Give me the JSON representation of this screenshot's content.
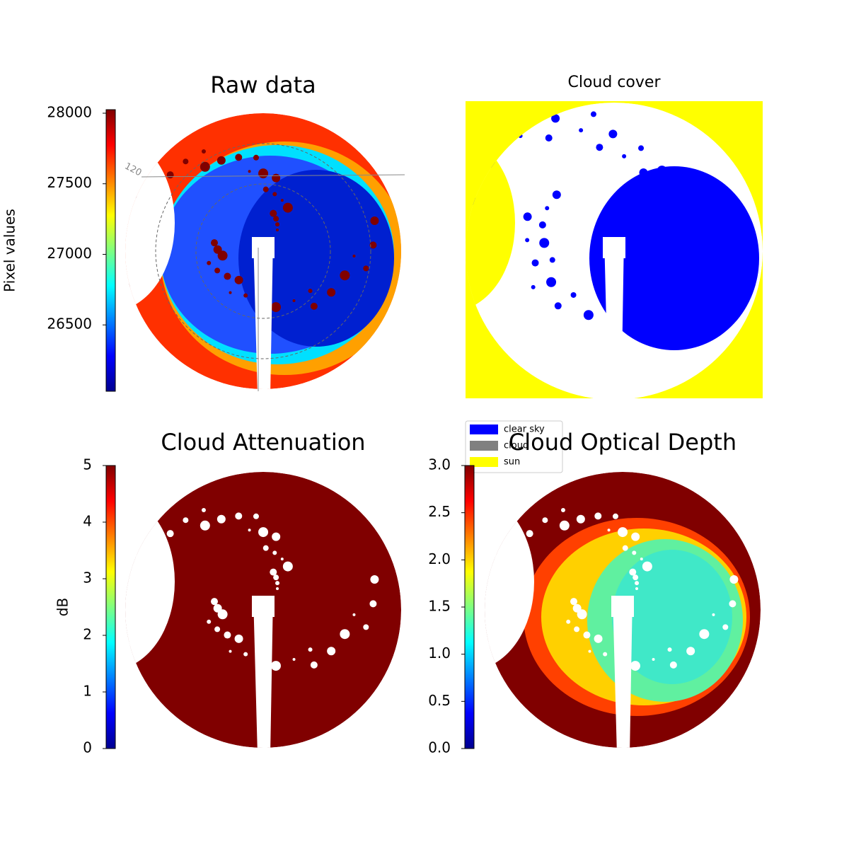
{
  "chart_data": [
    {
      "type": "image",
      "title": "Raw data",
      "colorbar": {
        "label": "Pixel values",
        "colormap": "jet",
        "lim": [
          26030,
          28025
        ],
        "ticks": [
          26500,
          27000,
          27500,
          28000
        ]
      },
      "annotations": [
        "120"
      ]
    },
    {
      "type": "image",
      "title": "Cloud cover",
      "series": [
        {
          "name": "clear sky",
          "color": "#0000ff"
        },
        {
          "name": "cloud",
          "color": "#808080"
        },
        {
          "name": "sun",
          "color": "#ffff00"
        }
      ]
    },
    {
      "type": "image",
      "title": "Cloud Attenuation",
      "colorbar": {
        "label": "dB",
        "colormap": "jet",
        "lim": [
          0,
          5
        ],
        "ticks": [
          0,
          1,
          2,
          3,
          4,
          5
        ]
      }
    },
    {
      "type": "image",
      "title": "Cloud Optical Depth",
      "colorbar": {
        "colormap": "jet",
        "lim": [
          0,
          3
        ],
        "ticks": [
          {
            "value": 0,
            "label": "0.0"
          },
          {
            "value": 0.5,
            "label": "0.5"
          },
          {
            "value": 1,
            "label": "1.0"
          },
          {
            "value": 1.5,
            "label": "1.5"
          },
          {
            "value": 2,
            "label": "2.0"
          },
          {
            "value": 2.5,
            "label": "2.5"
          },
          {
            "value": 3,
            "label": "3.0"
          }
        ]
      }
    }
  ]
}
